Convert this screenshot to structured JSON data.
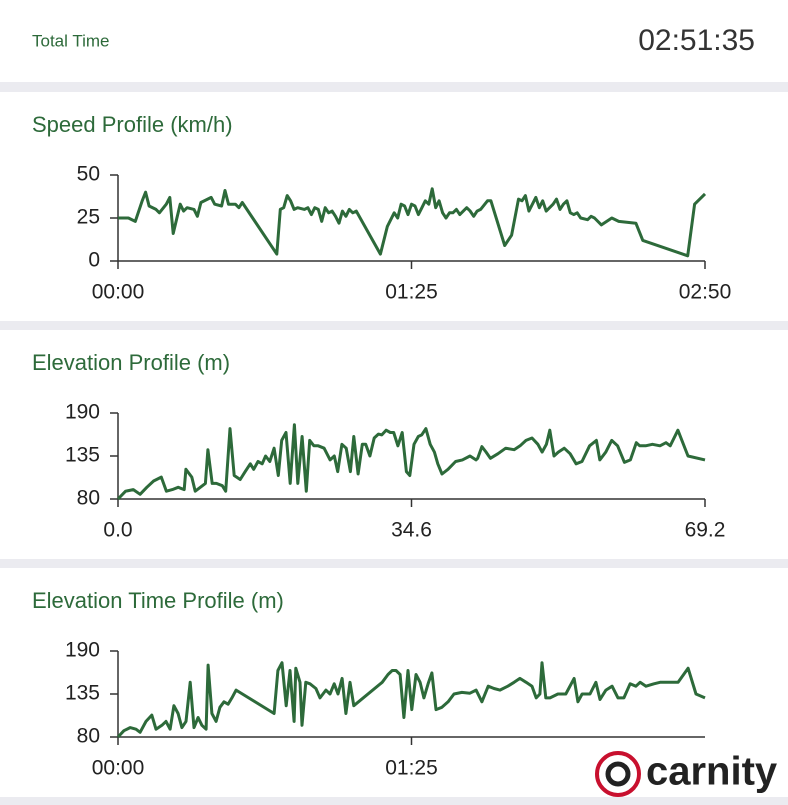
{
  "header": {
    "label": "Total Time",
    "value": "02:51:35"
  },
  "logo": {
    "text": "carnity"
  },
  "chart_data": [
    {
      "type": "line",
      "title": "Speed Profile (km/h)",
      "color": "#2d6a3a",
      "x": [
        0,
        3,
        5,
        7,
        8,
        9,
        11,
        12,
        14,
        15,
        16,
        18,
        19,
        20,
        22,
        23,
        24,
        27,
        28,
        30,
        31,
        32,
        34,
        35,
        36,
        46,
        47,
        48,
        49,
        50,
        51,
        52,
        54,
        55,
        56,
        57,
        58,
        59,
        60,
        61,
        62,
        63,
        64,
        65,
        66,
        67,
        68,
        69,
        76,
        78,
        80,
        81,
        82,
        83,
        84,
        85,
        86,
        87,
        88,
        89,
        90,
        91,
        92,
        93,
        94,
        95,
        96,
        97,
        98,
        99,
        100,
        101,
        102,
        103,
        104,
        105,
        107,
        108,
        112,
        114,
        116,
        117,
        118,
        119,
        120,
        121,
        122,
        123,
        124,
        126,
        127,
        128,
        129,
        130,
        131,
        132,
        133,
        134,
        136,
        137,
        138,
        140,
        143,
        145,
        150,
        152,
        165,
        167,
        170
      ],
      "values": [
        25,
        25,
        23,
        35,
        40,
        32,
        30,
        28,
        33,
        37,
        16,
        33,
        29,
        31,
        30,
        26,
        34,
        37,
        33,
        32,
        41,
        33,
        33,
        31,
        34,
        4,
        30,
        31,
        38,
        35,
        30,
        31,
        30,
        31,
        27,
        31,
        30,
        23,
        31,
        28,
        29,
        26,
        22,
        29,
        26,
        30,
        28,
        29,
        4,
        20,
        28,
        25,
        33,
        32,
        27,
        33,
        32,
        27,
        31,
        35,
        33,
        42,
        31,
        35,
        28,
        25,
        28,
        28,
        30,
        27,
        29,
        31,
        29,
        26,
        29,
        30,
        35,
        35,
        9,
        15,
        36,
        35,
        38,
        29,
        33,
        37,
        31,
        35,
        29,
        33,
        36,
        30,
        33,
        35,
        28,
        27,
        28,
        25,
        24,
        26,
        25,
        21,
        25,
        23,
        22,
        12,
        3,
        33,
        39
      ],
      "xlim": [
        0,
        170
      ],
      "xticks": [
        {
          "value": 0,
          "label": "00:00"
        },
        {
          "value": 85,
          "label": "01:25"
        },
        {
          "value": 170,
          "label": "02:50"
        }
      ],
      "ylim": [
        0,
        50
      ],
      "yticks": [
        0,
        25,
        50
      ]
    },
    {
      "type": "line",
      "title": "Elevation Profile (m)",
      "color": "#2d6a3a",
      "x": [
        0,
        0.9,
        1.8,
        2.6,
        3.4,
        4.2,
        5.1,
        5.7,
        6.4,
        7.1,
        7.8,
        8.0,
        8.7,
        9.1,
        9.7,
        10.3,
        10.6,
        11.1,
        11.6,
        12.3,
        12.7,
        13.2,
        13.7,
        14.4,
        15.0,
        15.6,
        16.0,
        16.5,
        17.0,
        17.4,
        17.9,
        18.4,
        18.9,
        19.3,
        19.8,
        20.3,
        20.8,
        21.2,
        21.7,
        22.2,
        22.6,
        23.1,
        23.6,
        24.3,
        25.0,
        25.5,
        25.9,
        26.4,
        26.9,
        27.4,
        27.8,
        28.3,
        28.8,
        29.2,
        29.7,
        30.2,
        30.7,
        31.1,
        31.6,
        32.1,
        32.5,
        33.0,
        33.5,
        34.0,
        34.4,
        34.9,
        35.4,
        35.8,
        36.3,
        36.8,
        37.3,
        37.7,
        38.2,
        38.9,
        39.8,
        40.6,
        41.5,
        42.2,
        42.4,
        42.9,
        43.4,
        43.9,
        44.8,
        45.7,
        46.7,
        47.4,
        48.1,
        48.8,
        49.5,
        50.0,
        50.5,
        50.9,
        51.4,
        51.9,
        52.6,
        53.3,
        54.0,
        54.7,
        55.6,
        56.4,
        56.8,
        57.5,
        58.2,
        58.9,
        59.7,
        60.4,
        61.1,
        61.5,
        62.2,
        63.0,
        63.9,
        64.6,
        65.1,
        66.0,
        67.2,
        69.2
      ],
      "values": [
        80,
        90,
        92,
        86,
        95,
        103,
        108,
        90,
        92,
        95,
        92,
        118,
        108,
        90,
        95,
        100,
        143,
        100,
        100,
        97,
        90,
        170,
        110,
        105,
        115,
        125,
        118,
        128,
        125,
        135,
        128,
        145,
        110,
        155,
        165,
        100,
        175,
        100,
        160,
        90,
        155,
        148,
        148,
        145,
        130,
        135,
        115,
        150,
        145,
        115,
        160,
        112,
        150,
        150,
        135,
        158,
        163,
        162,
        168,
        165,
        165,
        148,
        165,
        115,
        110,
        150,
        160,
        162,
        170,
        150,
        140,
        125,
        112,
        118,
        128,
        130,
        135,
        130,
        132,
        147,
        140,
        132,
        138,
        145,
        143,
        148,
        155,
        158,
        150,
        140,
        150,
        168,
        135,
        140,
        145,
        138,
        125,
        128,
        148,
        155,
        130,
        140,
        155,
        148,
        127,
        130,
        152,
        148,
        148,
        150,
        148,
        152,
        148,
        168,
        135,
        130
      ],
      "xlim": [
        0,
        69.2
      ],
      "xticks": [
        {
          "value": 0,
          "label": "0.0"
        },
        34.6,
        69.2
      ],
      "ylim": [
        80,
        190
      ],
      "yticks": [
        80,
        135,
        190
      ]
    },
    {
      "type": "line",
      "title": "Elevation Time Profile (m)",
      "color": "#2d6a3a",
      "x": [
        0,
        1.7,
        3.5,
        5.2,
        6.4,
        8.1,
        9.8,
        11.0,
        12.7,
        13.9,
        15.1,
        16.2,
        17.4,
        18.5,
        19.7,
        20.9,
        22.0,
        23.2,
        24.3,
        25.5,
        26.1,
        27.2,
        28.4,
        29.5,
        30.7,
        31.9,
        33.0,
        34.2,
        45.2,
        46.3,
        47.5,
        48.7,
        49.8,
        51.0,
        51.5,
        52.7,
        53.3,
        54.4,
        55.6,
        57.3,
        58.5,
        60.2,
        61.4,
        62.6,
        63.7,
        64.9,
        66.0,
        67.2,
        68.3,
        76.5,
        78.2,
        79.4,
        80.5,
        81.7,
        82.8,
        84.0,
        85.1,
        86.3,
        87.5,
        88.6,
        89.8,
        90.9,
        92.1,
        93.8,
        95.6,
        97.3,
        99.6,
        101.9,
        103.7,
        105.4,
        107.2,
        108.9,
        110.6,
        112.9,
        114.7,
        116.4,
        118.2,
        119.9,
        121.1,
        122.2,
        122.8,
        123.9,
        125.1,
        127.4,
        129.7,
        132.1,
        133.2,
        134.4,
        136.7,
        138.4,
        139.6,
        141.3,
        143.1,
        144.8,
        146.5,
        148.3,
        150.0,
        151.2,
        152.9,
        155.2,
        157.0,
        158.7,
        160.4,
        162.2,
        165.1,
        167.4,
        170
      ],
      "values": [
        80,
        88,
        92,
        90,
        86,
        100,
        108,
        90,
        95,
        100,
        90,
        120,
        110,
        92,
        100,
        150,
        92,
        105,
        95,
        90,
        172,
        110,
        100,
        118,
        125,
        122,
        130,
        140,
        110,
        165,
        175,
        120,
        165,
        100,
        168,
        150,
        95,
        150,
        148,
        142,
        130,
        140,
        135,
        148,
        135,
        155,
        110,
        150,
        120,
        150,
        160,
        165,
        165,
        160,
        105,
        165,
        115,
        160,
        150,
        130,
        148,
        162,
        115,
        118,
        125,
        135,
        137,
        136,
        140,
        125,
        145,
        142,
        140,
        145,
        150,
        155,
        150,
        145,
        130,
        135,
        175,
        130,
        130,
        135,
        135,
        155,
        125,
        135,
        135,
        150,
        128,
        140,
        145,
        130,
        130,
        148,
        145,
        150,
        145,
        148,
        150,
        150,
        150,
        150,
        168,
        135,
        130
      ],
      "xlim": [
        0,
        170
      ],
      "xticks": [
        {
          "value": 0,
          "label": "00:00"
        },
        {
          "value": 85,
          "label": "01:25"
        }
      ],
      "ylim": [
        80,
        190
      ],
      "yticks": [
        80,
        135,
        190
      ]
    }
  ]
}
